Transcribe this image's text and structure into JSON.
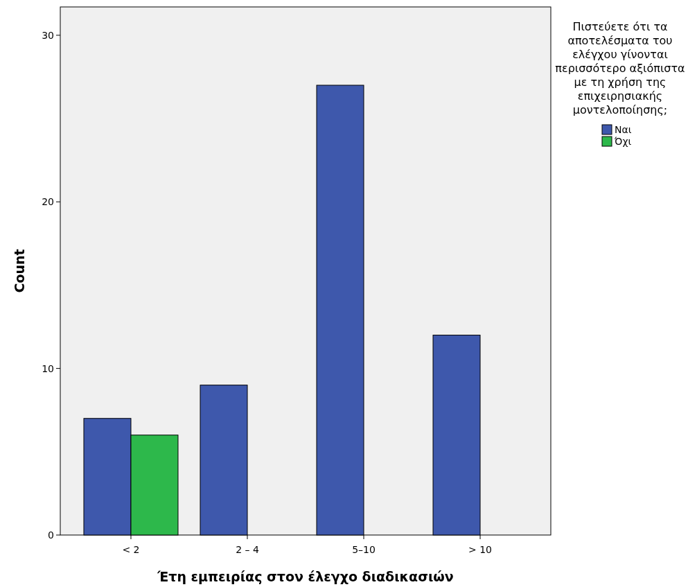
{
  "chart_data": {
    "type": "bar",
    "xlabel": "Έτη εμπειρίας στον έλεγχο διαδικασιών",
    "ylabel": "Count",
    "legend_title": "Πιστεύετε ότι τα αποτελέσματα του ελέγχου γίνονται περισσότερο αξιόπιστα με τη χρήση της επιχειρησιακής μοντελοποίησης;",
    "categories": [
      "< 2",
      "2 – 4",
      "5–10",
      "> 10"
    ],
    "series": [
      {
        "name": "Ναι",
        "color": "#3e58ac",
        "values": [
          7,
          9,
          27,
          12
        ]
      },
      {
        "name": "Όχι",
        "color": "#2db84b",
        "values": [
          6,
          null,
          null,
          null
        ]
      }
    ],
    "ylim": [
      0,
      31.7
    ],
    "yticks": [
      0,
      10,
      20,
      30
    ],
    "grid": false,
    "legend": "right"
  }
}
